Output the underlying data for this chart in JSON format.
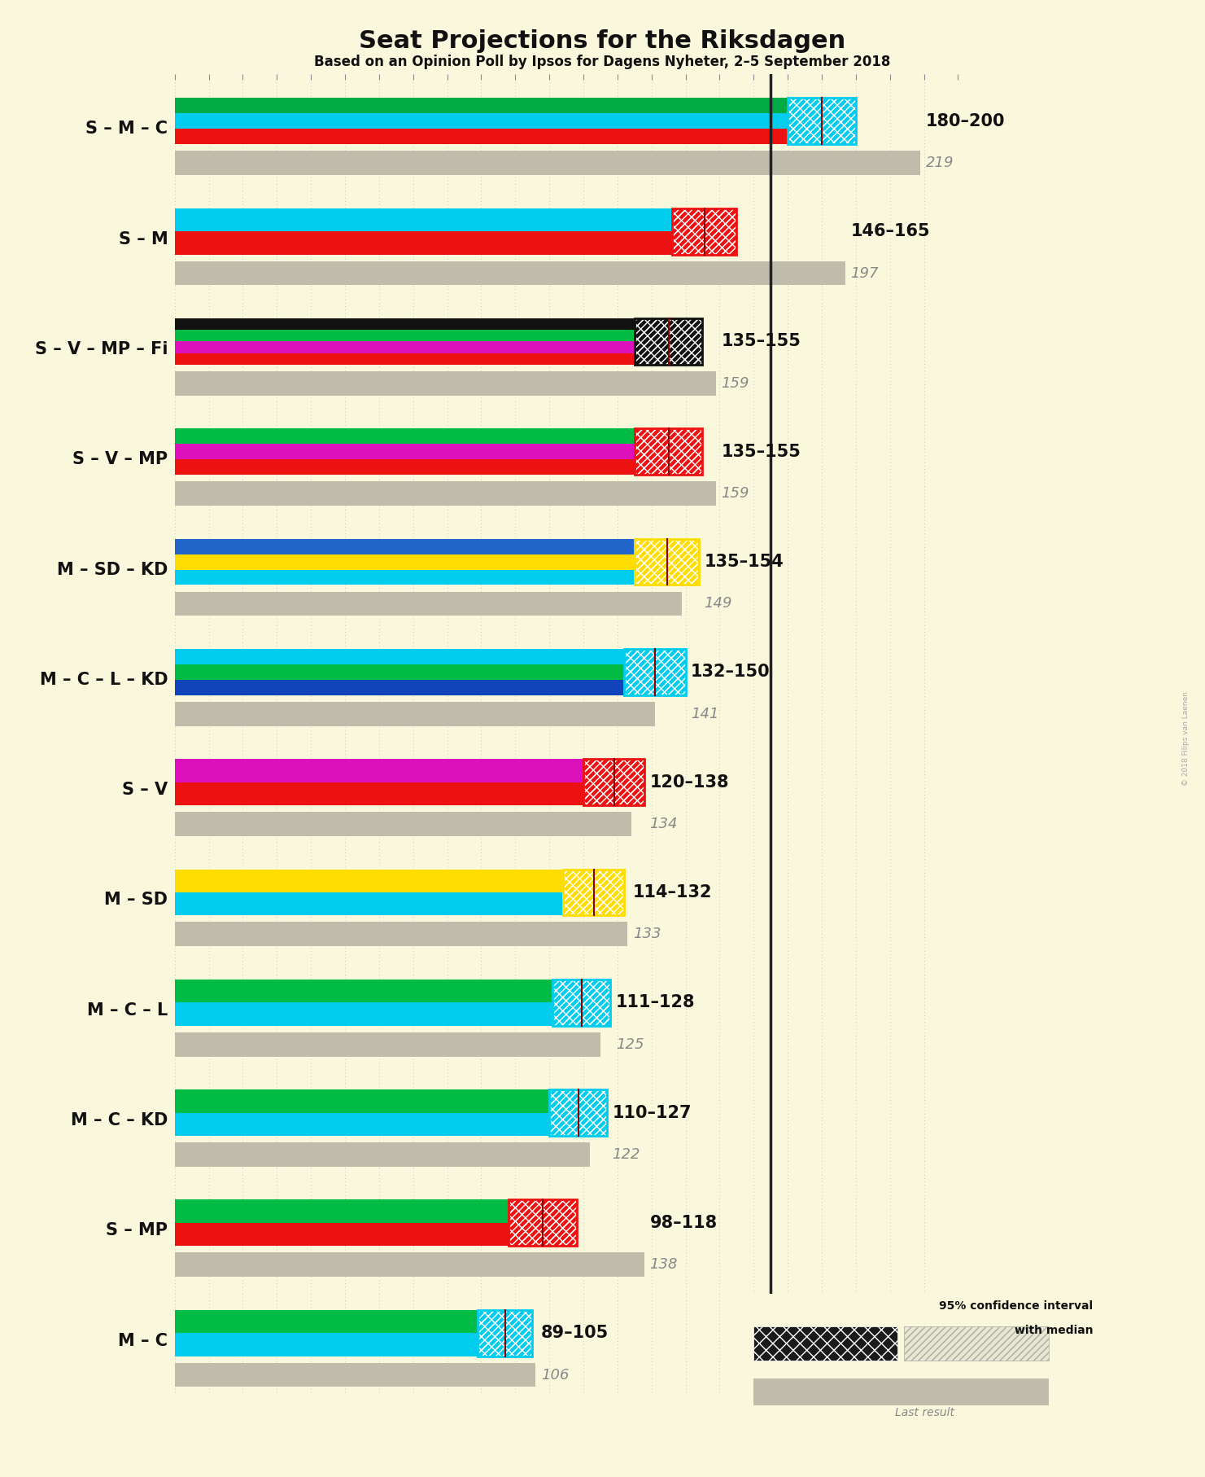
{
  "title": "Seat Projections for the Riksdagen",
  "subtitle": "Based on an Opinion Poll by Ipsos for Dagens Nyheter, 2–5 September 2018",
  "background": "#FAF8DC",
  "copyright": "© 2018 Filips van Laenen",
  "xmax": 230,
  "majority_line": 175,
  "coalitions": [
    {
      "name": "S – M – C",
      "low": 180,
      "high": 200,
      "last": 219,
      "stripes": [
        "#EE1111",
        "#00CCEE",
        "#00AA44"
      ],
      "ci_color": "#00CCEE"
    },
    {
      "name": "S – M",
      "low": 146,
      "high": 165,
      "last": 197,
      "stripes": [
        "#EE1111",
        "#00CCEE"
      ],
      "ci_color": "#EE1111"
    },
    {
      "name": "S – V – MP – Fi",
      "low": 135,
      "high": 155,
      "last": 159,
      "stripes": [
        "#EE1111",
        "#DD11BB",
        "#00BB44",
        "#111111"
      ],
      "ci_color": "#111111"
    },
    {
      "name": "S – V – MP",
      "low": 135,
      "high": 155,
      "last": 159,
      "stripes": [
        "#EE1111",
        "#DD11BB",
        "#00BB44"
      ],
      "ci_color": "#EE1111"
    },
    {
      "name": "M – SD – KD",
      "low": 135,
      "high": 154,
      "last": 149,
      "stripes": [
        "#00CCEE",
        "#FFDD00",
        "#2266CC"
      ],
      "ci_color": "#FFDD00"
    },
    {
      "name": "M – C – L – KD",
      "low": 132,
      "high": 150,
      "last": 141,
      "stripes": [
        "#1144BB",
        "#00BB44",
        "#00CCEE"
      ],
      "ci_color": "#00CCEE"
    },
    {
      "name": "S – V",
      "low": 120,
      "high": 138,
      "last": 134,
      "stripes": [
        "#EE1111",
        "#DD11BB"
      ],
      "ci_color": "#EE1111"
    },
    {
      "name": "M – SD",
      "low": 114,
      "high": 132,
      "last": 133,
      "stripes": [
        "#00CCEE",
        "#FFDD00"
      ],
      "ci_color": "#FFDD00"
    },
    {
      "name": "M – C – L",
      "low": 111,
      "high": 128,
      "last": 125,
      "stripes": [
        "#00CCEE",
        "#00BB44"
      ],
      "ci_color": "#00CCEE"
    },
    {
      "name": "M – C – KD",
      "low": 110,
      "high": 127,
      "last": 122,
      "stripes": [
        "#00CCEE",
        "#00BB44"
      ],
      "ci_color": "#00CCEE"
    },
    {
      "name": "S – MP",
      "low": 98,
      "high": 118,
      "last": 138,
      "stripes": [
        "#EE1111",
        "#00BB44"
      ],
      "ci_color": "#EE1111"
    },
    {
      "name": "M – C",
      "low": 89,
      "high": 105,
      "last": 106,
      "stripes": [
        "#00CCEE",
        "#00BB44"
      ],
      "ci_color": "#00CCEE"
    }
  ],
  "grid_step": 10,
  "grid_color": "#BBBBBB",
  "last_color": "#C0BCAC",
  "label_fontsize": 15,
  "range_fontsize": 15,
  "last_fontsize": 13
}
